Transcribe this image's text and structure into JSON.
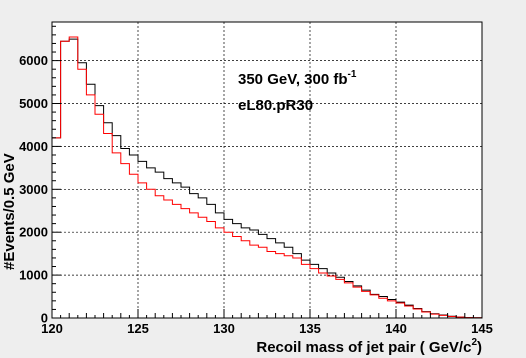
{
  "chart_data": {
    "type": "line",
    "title": "",
    "xlabel": "Recoil mass of jet pair ( GeV/c",
    "xlabel_sup": "2",
    "xlabel_end": ")",
    "ylabel": "#Events/0.5 GeV",
    "xlim": [
      120,
      145
    ],
    "ylim": [
      0,
      6900
    ],
    "grid": true,
    "x_ticks": [
      120,
      125,
      130,
      135,
      140,
      145
    ],
    "y_ticks": [
      0,
      1000,
      2000,
      3000,
      4000,
      5000,
      6000
    ],
    "annotations": [
      {
        "text": "350 GeV, 300 fb",
        "sup": "-1"
      },
      {
        "text": "eL80.pR30"
      }
    ],
    "bin_edges_start": 120,
    "bin_width": 0.5,
    "series": [
      {
        "color": "#000000",
        "values": [
          4200,
          6450,
          6500,
          5950,
          5450,
          4950,
          4550,
          4250,
          3950,
          3800,
          3650,
          3500,
          3400,
          3250,
          3150,
          3050,
          2900,
          2800,
          2650,
          2450,
          2300,
          2200,
          2100,
          2050,
          1950,
          1850,
          1750,
          1650,
          1500,
          1350,
          1250,
          1150,
          1050,
          950,
          850,
          750,
          650,
          550,
          500,
          430,
          370,
          300,
          220,
          150,
          100,
          70,
          40,
          20,
          10,
          5
        ]
      },
      {
        "color": "#ff0000",
        "values": [
          4200,
          6450,
          6550,
          5800,
          5200,
          4750,
          4300,
          3850,
          3600,
          3350,
          3150,
          3000,
          2850,
          2750,
          2650,
          2550,
          2450,
          2350,
          2250,
          2100,
          2000,
          1900,
          1800,
          1700,
          1650,
          1550,
          1500,
          1450,
          1400,
          1250,
          1150,
          1050,
          980,
          900,
          820,
          720,
          620,
          540,
          460,
          400,
          350,
          280,
          210,
          140,
          90,
          60,
          35,
          20,
          10,
          5
        ]
      }
    ]
  }
}
